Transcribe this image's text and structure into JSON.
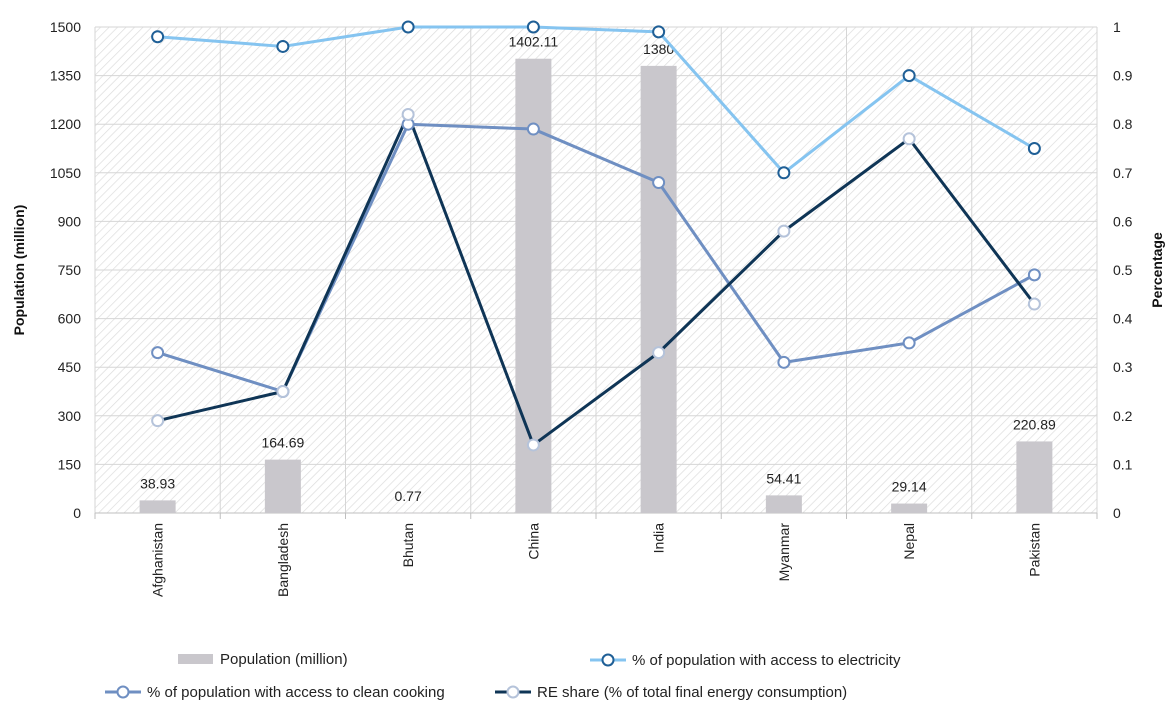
{
  "chart_data": {
    "type": "bar",
    "categories": [
      "Afghanistan",
      "Bangladesh",
      "Bhutan",
      "China",
      "India",
      "Myanmar",
      "Nepal",
      "Pakistan"
    ],
    "ylabel": "Population (million)",
    "y2label": "Percentage",
    "ylim": [
      0,
      1500
    ],
    "y2lim": [
      0,
      1
    ],
    "yticks": [
      "0",
      "150",
      "300",
      "450",
      "600",
      "750",
      "900",
      "1050",
      "1200",
      "1350",
      "1500"
    ],
    "y2ticks": [
      "0",
      "0.1",
      "0.2",
      "0.3",
      "0.4",
      "0.5",
      "0.6",
      "0.7",
      "0.8",
      "0.9",
      "1"
    ],
    "grid": true,
    "legend_position": "bottom",
    "series": [
      {
        "name": "Population (million)",
        "type": "bar",
        "axis": "left",
        "color": "#c9c7cc",
        "values": [
          38.93,
          164.69,
          0.77,
          1402.11,
          1380,
          54.41,
          29.14,
          220.89
        ],
        "labels": [
          "38.93",
          "164.69",
          "0.77",
          "1402.11",
          "1380",
          "54.41",
          "29.14",
          "220.89"
        ]
      },
      {
        "name": "% of population with access to electricity",
        "type": "line",
        "axis": "right",
        "color": "#85c4f0",
        "marker_fill": "#ffffff",
        "marker_stroke": "#1f5f96",
        "values": [
          0.98,
          0.96,
          1.0,
          1.0,
          0.99,
          0.7,
          0.9,
          0.75
        ]
      },
      {
        "name": "% of population with access to clean cooking",
        "type": "line",
        "axis": "right",
        "color": "#6f8fc2",
        "marker_fill": "#ffffff",
        "marker_stroke": "#6f8fc2",
        "values": [
          0.33,
          0.25,
          0.8,
          0.79,
          0.68,
          0.31,
          0.35,
          0.49
        ]
      },
      {
        "name": "RE share (% of total final energy consumption)",
        "type": "line",
        "axis": "right",
        "color": "#0f3556",
        "marker_fill": "#ffffff",
        "marker_stroke": "#b5c3da",
        "values": [
          0.19,
          0.25,
          0.82,
          0.14,
          0.33,
          0.58,
          0.77,
          0.43
        ]
      }
    ]
  }
}
